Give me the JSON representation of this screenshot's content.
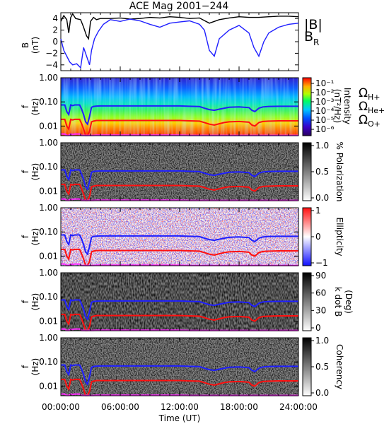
{
  "title": "ACE Mag 2001−244",
  "xlabel": "Time (UT)",
  "xticks": [
    "00:00:00",
    "06:00:00",
    "12:00:00",
    "18:00:00",
    "24:00:00"
  ],
  "colors": {
    "b_total": "#000000",
    "b_r": "#1f1fff",
    "h_plus": "#1f1fff",
    "he_plus": "#ff1010",
    "o_plus": "#ff22ff"
  },
  "chart_data": [
    {
      "type": "line",
      "panel": "magnetic-field",
      "ylabel": "B",
      "yunit": "(nT)",
      "ylim": [
        -5,
        5
      ],
      "yticks": [
        "4",
        "2",
        "0",
        "−2",
        "−4"
      ],
      "xlim": [
        0,
        24
      ],
      "legend": [
        {
          "name": "|B|",
          "color": "#000000"
        },
        {
          "name": "B",
          "subscript": "R",
          "color": "#1f1fff"
        }
      ],
      "series": [
        {
          "name": "|B|",
          "x": [
            0,
            0.3,
            0.6,
            0.8,
            1.0,
            1.2,
            1.5,
            2.0,
            2.3,
            2.6,
            2.8,
            3.0,
            3.3,
            3.6,
            4.0,
            5,
            6,
            7,
            8,
            9,
            10,
            11,
            12,
            13,
            14,
            15,
            16,
            17,
            18,
            19,
            20,
            21,
            22,
            23,
            24
          ],
          "y": [
            3.5,
            4.5,
            3.8,
            1.5,
            4.2,
            4.8,
            4.0,
            3.8,
            2.5,
            1.0,
            0.5,
            3.5,
            4.2,
            3.8,
            4.0,
            4.0,
            4.1,
            3.9,
            4.0,
            4.2,
            4.1,
            4.3,
            4.2,
            4.0,
            4.1,
            3.2,
            3.8,
            4.1,
            4.3,
            4.2,
            4.2,
            4.3,
            4.4,
            4.4,
            4.3
          ]
        },
        {
          "name": "B_R",
          "x": [
            0,
            0.3,
            0.6,
            0.9,
            1.2,
            1.6,
            2.0,
            2.3,
            2.6,
            2.9,
            3.1,
            3.4,
            3.8,
            4.3,
            5,
            6,
            7,
            8,
            9,
            10,
            11,
            12,
            13,
            14,
            14.5,
            15,
            15.5,
            16,
            17,
            18,
            19,
            19.5,
            20,
            20.5,
            21,
            22,
            23,
            24
          ],
          "y": [
            0.5,
            -1.5,
            -2.5,
            -3.5,
            -4.0,
            -3.8,
            -4.5,
            -1.0,
            -2.5,
            -4.0,
            -1.5,
            0.5,
            1.8,
            3.0,
            3.8,
            3.5,
            3.9,
            3.6,
            3.0,
            2.5,
            3.2,
            3.4,
            3.6,
            3.0,
            2.0,
            -1.5,
            -2.5,
            0.5,
            2.0,
            2.8,
            1.5,
            -1.0,
            -2.5,
            0.0,
            1.5,
            2.5,
            3.0,
            3.2
          ]
        }
      ]
    },
    {
      "type": "heatmap",
      "panel": "intensity",
      "ylabel": "f",
      "yunit": "(Hz)",
      "ylim": [
        0.004,
        1.0
      ],
      "yscale": "log",
      "yticks": [
        "1.00",
        "0.10",
        "0.01"
      ],
      "colorbar": {
        "label": "Intensity",
        "unit": "(nT²/Hz)",
        "ticks": [
          "10⁻¹",
          "10⁻²",
          "10⁻³",
          "10⁻⁴",
          "10⁻⁵",
          "10⁻⁶"
        ],
        "range": [
          1e-06,
          0.1
        ]
      },
      "legend": [
        {
          "symbol": "Ω",
          "sub": "H+",
          "color": "#1f1fff"
        },
        {
          "symbol": "Ω",
          "sub": "He+",
          "color": "#ff1010"
        },
        {
          "symbol": "Ω",
          "sub": "O+",
          "color": "#ff22ff"
        }
      ]
    },
    {
      "type": "heatmap",
      "panel": "polarization",
      "ylabel": "f",
      "yunit": "(Hz)",
      "yscale": "log",
      "yticks": [
        "1.00",
        "0.10",
        "0.01"
      ],
      "colorbar": {
        "label": "% Polarization",
        "ticks": [
          "1.0",
          "0.5",
          "0.0"
        ],
        "range": [
          0,
          1
        ]
      }
    },
    {
      "type": "heatmap",
      "panel": "ellipticity",
      "ylabel": "f",
      "yunit": "(Hz)",
      "yscale": "log",
      "yticks": [
        "1.00",
        "0.10",
        "0.01"
      ],
      "colorbar": {
        "label": "Ellipticity",
        "ticks": [
          "1",
          "0",
          "−1"
        ],
        "range": [
          -1,
          1
        ]
      }
    },
    {
      "type": "heatmap",
      "panel": "k-dot-b",
      "ylabel": "f",
      "yunit": "(Hz)",
      "yscale": "log",
      "yticks": [
        "1.00",
        "0.10",
        "0.01"
      ],
      "colorbar": {
        "label": "k dot B",
        "unit": "(Deg)",
        "ticks": [
          "90",
          "60",
          "30",
          "0"
        ],
        "range": [
          0,
          90
        ]
      }
    },
    {
      "type": "heatmap",
      "panel": "coherency",
      "ylabel": "f",
      "yunit": "(Hz)",
      "yscale": "log",
      "yticks": [
        "1.00",
        "0.10",
        "0.01"
      ],
      "colorbar": {
        "label": "Coherency",
        "ticks": [
          "1.0",
          "0.5",
          "0.0"
        ],
        "range": [
          0,
          1
        ]
      }
    }
  ],
  "gyro": {
    "x": [
      0,
      0.4,
      0.6,
      0.8,
      1.0,
      1.2,
      1.4,
      1.6,
      1.9,
      2.1,
      2.3,
      2.5,
      2.7,
      2.9,
      3.1,
      3.3,
      3.6,
      4,
      5,
      6,
      7,
      8,
      9,
      10,
      11,
      12,
      13,
      14,
      14.5,
      15,
      15.5,
      16,
      16.5,
      17,
      18,
      19,
      19.3,
      19.6,
      20,
      20.4,
      21,
      22,
      23,
      24
    ],
    "h_plus": [
      0.075,
      0.075,
      0.04,
      0.03,
      0.075,
      0.07,
      0.075,
      0.075,
      0.075,
      0.05,
      0.03,
      0.015,
      0.012,
      0.025,
      0.06,
      0.065,
      0.067,
      0.068,
      0.068,
      0.068,
      0.068,
      0.068,
      0.068,
      0.068,
      0.068,
      0.068,
      0.066,
      0.064,
      0.055,
      0.048,
      0.045,
      0.05,
      0.055,
      0.06,
      0.062,
      0.058,
      0.045,
      0.04,
      0.055,
      0.062,
      0.065,
      0.066,
      0.066,
      0.066
    ],
    "he_plus": [
      0.019,
      0.019,
      0.01,
      0.0075,
      0.019,
      0.018,
      0.019,
      0.019,
      0.019,
      0.0125,
      0.0075,
      0.004,
      0.003,
      0.006,
      0.015,
      0.016,
      0.017,
      0.017,
      0.017,
      0.017,
      0.017,
      0.017,
      0.017,
      0.017,
      0.017,
      0.017,
      0.0165,
      0.016,
      0.014,
      0.012,
      0.011,
      0.0125,
      0.014,
      0.015,
      0.0155,
      0.0145,
      0.011,
      0.01,
      0.014,
      0.0155,
      0.016,
      0.0165,
      0.0165,
      0.0165
    ],
    "o_plus": [
      0.0047,
      0.0047,
      0.0025,
      0.0019,
      0.0047,
      0.0045,
      0.0047,
      0.0047,
      0.0047,
      0.0031,
      0.0019,
      0.001,
      0.0008,
      0.0016,
      0.0038,
      0.0041,
      0.0042,
      0.0042,
      0.0042,
      0.0042,
      0.0042,
      0.0042,
      0.0042,
      0.0042,
      0.0042,
      0.0042,
      0.0041,
      0.004,
      0.0034,
      0.003,
      0.0028,
      0.0031,
      0.0034,
      0.0037,
      0.0039,
      0.0036,
      0.0028,
      0.0025,
      0.0034,
      0.0039,
      0.004,
      0.0041,
      0.0041,
      0.0041
    ]
  }
}
